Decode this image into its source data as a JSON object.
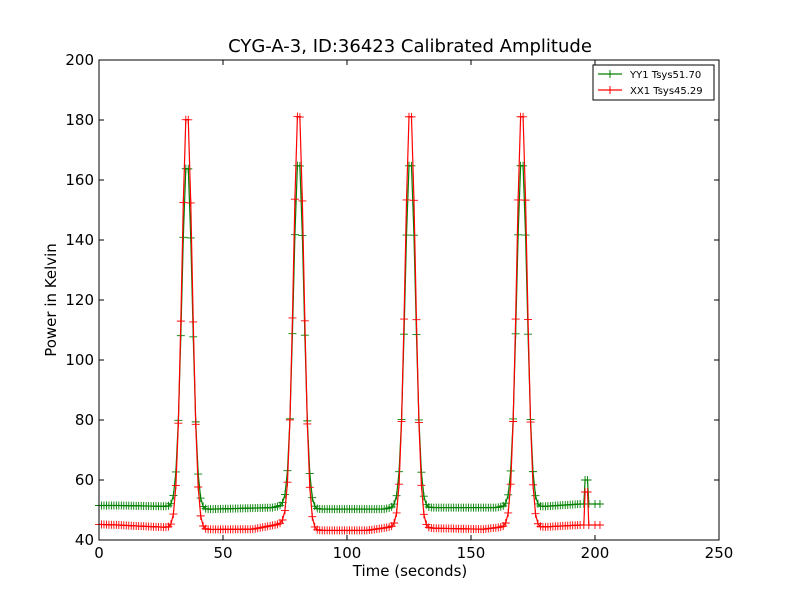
{
  "chart_data": {
    "type": "line",
    "title": "CYG-A-3, ID:36423 Calibrated Amplitude",
    "xlabel": "Time (seconds)",
    "ylabel": "Power in Kelvin",
    "xlim": [
      0,
      250
    ],
    "ylim": [
      40,
      200
    ],
    "x_ticks": [
      "0",
      "50",
      "100",
      "150",
      "200",
      "250"
    ],
    "y_ticks": [
      "40",
      "60",
      "80",
      "100",
      "120",
      "140",
      "160",
      "180",
      "200"
    ],
    "grid": false,
    "legend_position": "top-right",
    "series": [
      {
        "name": "YY1 Tsys51.70",
        "color": "#008000",
        "baseline": [
          [
            0,
            51.5
          ],
          [
            8,
            51.5
          ],
          [
            28,
            51.2
          ],
          [
            41,
            50.2
          ],
          [
            70,
            50.8
          ],
          [
            74,
            51.5
          ],
          [
            86,
            50.3
          ],
          [
            115,
            50.3
          ],
          [
            119,
            51.0
          ],
          [
            131,
            50.8
          ],
          [
            160,
            50.8
          ],
          [
            164,
            51.3
          ],
          [
            176,
            51.0
          ],
          [
            194,
            52.0
          ]
        ],
        "peaks": [
          {
            "x": 35.5,
            "y": 167
          },
          {
            "x": 80.5,
            "y": 168
          },
          {
            "x": 125.5,
            "y": 168
          },
          {
            "x": 170.5,
            "y": 168
          }
        ],
        "tail": [
          [
            195.5,
            52
          ],
          [
            196,
            60
          ],
          [
            197,
            60
          ],
          [
            197.5,
            52
          ],
          [
            200,
            52
          ],
          [
            202,
            52
          ]
        ]
      },
      {
        "name": "XX1 Tsys45.29",
        "color": "#ff0000",
        "baseline": [
          [
            0,
            45.2
          ],
          [
            8,
            45.0
          ],
          [
            12,
            44.8
          ],
          [
            28,
            44.2
          ],
          [
            41,
            43.5
          ],
          [
            62,
            43.6
          ],
          [
            74,
            45.5
          ],
          [
            86,
            43.2
          ],
          [
            108,
            43.2
          ],
          [
            119,
            44.5
          ],
          [
            131,
            44.0
          ],
          [
            155,
            43.6
          ],
          [
            164,
            44.5
          ],
          [
            176,
            44.2
          ],
          [
            194,
            45.0
          ]
        ],
        "peaks": [
          {
            "x": 35.5,
            "y": 184
          },
          {
            "x": 80.5,
            "y": 185
          },
          {
            "x": 125.5,
            "y": 185
          },
          {
            "x": 170.5,
            "y": 185
          }
        ],
        "tail": [
          [
            195.5,
            45
          ],
          [
            196,
            56
          ],
          [
            197,
            56
          ],
          [
            197.5,
            45
          ],
          [
            200,
            45
          ],
          [
            202,
            45
          ]
        ]
      }
    ]
  }
}
